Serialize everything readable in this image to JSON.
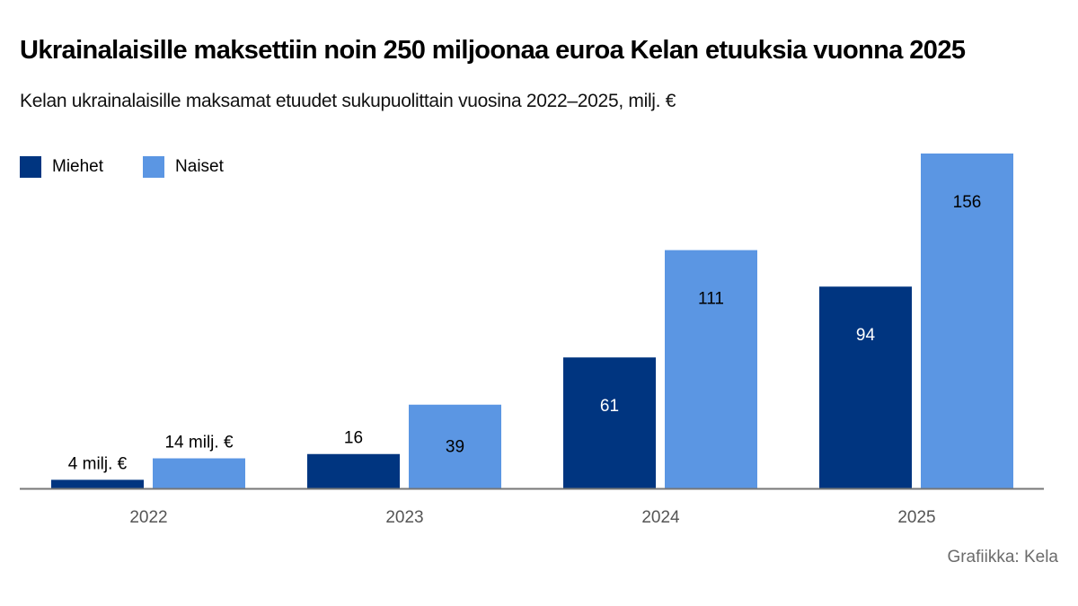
{
  "title": "Ukrainalaisille maksettiin noin 250 miljoonaa euroa Kelan etuuksia vuonna 2025",
  "subtitle": "Kelan ukrainalaisille maksamat etuudet sukupuolittain vuosina 2022–2025, milj. €",
  "credit": "Grafiikka: Kela",
  "chart_data": {
    "type": "bar",
    "title": "Ukrainalaisille maksettiin noin 250 miljoonaa euroa Kelan etuuksia vuonna 2025",
    "subtitle": "Kelan ukrainalaisille maksamat etuudet sukupuolittain vuosina 2022–2025, milj. €",
    "categories": [
      "2022",
      "2023",
      "2024",
      "2025"
    ],
    "series": [
      {
        "name": "Miehet",
        "color": "#003580",
        "values": [
          4,
          16,
          61,
          94
        ],
        "labels": [
          "4 milj. €",
          "16",
          "61",
          "94"
        ]
      },
      {
        "name": "Naiset",
        "color": "#5b96e3",
        "values": [
          14,
          39,
          111,
          156
        ],
        "labels": [
          "14 milj. €",
          "39",
          "111",
          "156"
        ]
      }
    ],
    "ylim": [
      0,
      156
    ],
    "grid": false,
    "legend": "top-left",
    "xlabel": "",
    "ylabel": ""
  }
}
